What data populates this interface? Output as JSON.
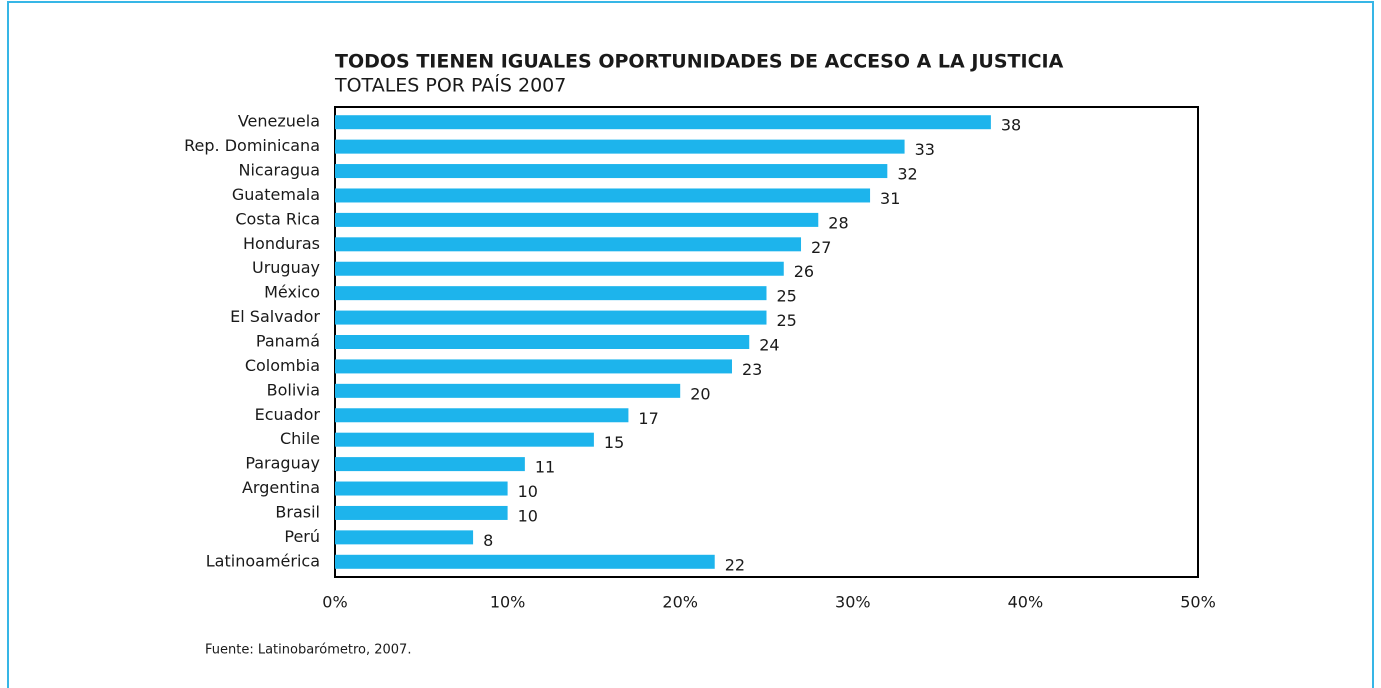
{
  "chart_data": {
    "type": "barh",
    "title": "TODOS TIENEN IGUALES OPORTUNIDADES DE ACCESO A LA JUSTICIA",
    "subtitle": "TOTALES POR PAÍS 2007",
    "source": "Fuente: Latinobarómetro, 2007.",
    "categories": [
      "Venezuela",
      "Rep. Dominicana",
      "Nicaragua",
      "Guatemala",
      "Costa Rica",
      "Honduras",
      "Uruguay",
      "México",
      "El Salvador",
      "Panamá",
      "Colombia",
      "Bolivia",
      "Ecuador",
      "Chile",
      "Paraguay",
      "Argentina",
      "Brasil",
      "Perú",
      "Latinoamérica"
    ],
    "values": [
      38,
      33,
      32,
      31,
      28,
      27,
      26,
      25,
      25,
      24,
      23,
      20,
      17,
      15,
      11,
      10,
      10,
      8,
      22
    ],
    "color": "#1db4ec",
    "xlim": [
      0,
      50
    ],
    "xticks": [
      {
        "value": 0,
        "label": "0%"
      },
      {
        "value": 10,
        "label": "10%"
      },
      {
        "value": 20,
        "label": "20%"
      },
      {
        "value": 30,
        "label": "30%"
      },
      {
        "value": 40,
        "label": "40%"
      },
      {
        "value": 50,
        "label": "50%"
      }
    ],
    "grid": false
  }
}
